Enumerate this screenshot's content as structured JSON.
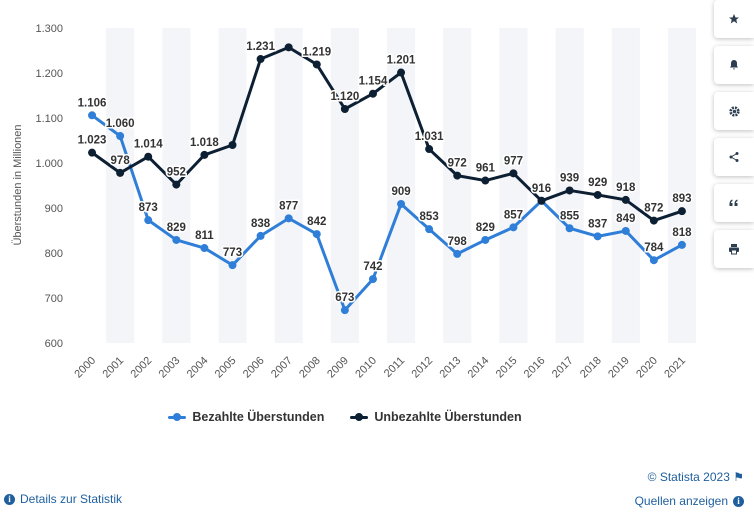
{
  "chart_data": {
    "type": "line",
    "title": "",
    "xlabel": "",
    "ylabel": "Überstunden in Millionen",
    "ylim": [
      600,
      1300
    ],
    "yticks": [
      "600",
      "700",
      "800",
      "900",
      "1.000",
      "1.100",
      "1.200",
      "1.300"
    ],
    "x": [
      "2000",
      "2001",
      "2002",
      "2003",
      "2004",
      "2005",
      "2006",
      "2007",
      "2008",
      "2009",
      "2010",
      "2011",
      "2012",
      "2013",
      "2014",
      "2015",
      "2016",
      "2017",
      "2018",
      "2019",
      "2020",
      "2021"
    ],
    "grid": "alternating vertical bands",
    "legend": "bottom-center",
    "series": [
      {
        "name": "Bezahlte Überstunden",
        "color": "#2f7ed8",
        "values": [
          1106,
          1060,
          873,
          829,
          811,
          773,
          838,
          877,
          842,
          673,
          742,
          909,
          853,
          798,
          829,
          857,
          916,
          855,
          837,
          849,
          784,
          818
        ],
        "labels": [
          "1.106",
          "1.060",
          "873",
          "829",
          "811",
          "773",
          "838",
          "877",
          "842",
          "673",
          "742",
          "909",
          "853",
          "798",
          "829",
          "857",
          "916",
          "855",
          "837",
          "849",
          "784",
          "818"
        ]
      },
      {
        "name": "Unbezahlte Überstunden",
        "color": "#0d1f33",
        "values": [
          1023,
          978,
          1014,
          952,
          1018,
          1040,
          1231,
          1257,
          1219,
          1120,
          1154,
          1201,
          1031,
          972,
          961,
          977,
          916,
          939,
          929,
          918,
          872,
          893
        ],
        "labels": [
          "1.023",
          "978",
          "1.014",
          "952",
          "1.018",
          "",
          "1.231",
          "",
          "1.219",
          "1.120",
          "1.154",
          "1.201",
          "1.031",
          "972",
          "961",
          "977",
          "",
          "939",
          "929",
          "918",
          "872",
          "893"
        ]
      }
    ]
  },
  "legend": {
    "paid_label": "Bezahlte Überstunden",
    "unpaid_label": "Unbezahlte Überstunden"
  },
  "footer": {
    "copyright": "© Statista 2023",
    "details_link": "Details zur Statistik",
    "sources_link": "Quellen anzeigen"
  },
  "sidebar": {
    "icons": [
      "star-icon",
      "bell-icon",
      "gear-icon",
      "share-icon",
      "quote-icon",
      "print-icon"
    ]
  }
}
